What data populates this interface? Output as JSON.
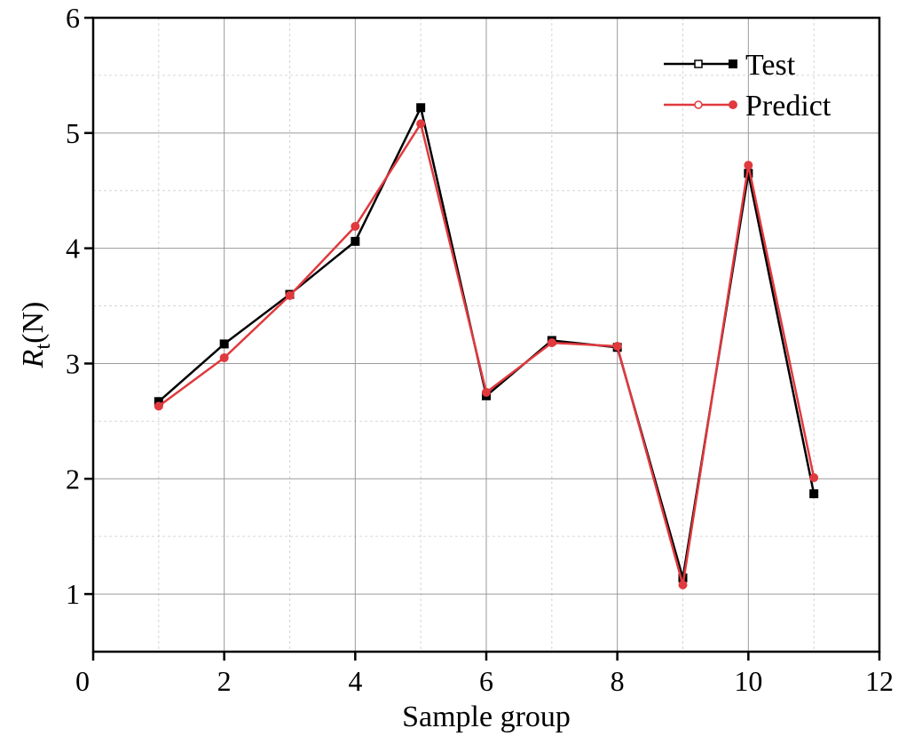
{
  "chart_data": {
    "type": "line",
    "title": "",
    "xlabel": "Sample group",
    "ylabel_main": "R",
    "ylabel_sub": "t",
    "ylabel_unit": "(N)",
    "xlim": [
      0,
      12
    ],
    "ylim": [
      0.5,
      6
    ],
    "xticks": [
      0,
      2,
      4,
      6,
      8,
      10,
      12
    ],
    "yticks": [
      1,
      2,
      3,
      4,
      5,
      6
    ],
    "grid": true,
    "legend_position": "top-right",
    "x": [
      1,
      2,
      3,
      4,
      5,
      6,
      7,
      8,
      9,
      10,
      11
    ],
    "series": [
      {
        "name": "Test",
        "color": "#000000",
        "marker": "square",
        "values": [
          2.67,
          3.17,
          3.6,
          4.06,
          5.22,
          2.72,
          3.2,
          3.14,
          1.14,
          4.65,
          1.87
        ]
      },
      {
        "name": "Predict",
        "color": "#e0393e",
        "marker": "circle",
        "values": [
          2.63,
          3.05,
          3.59,
          4.19,
          5.08,
          2.75,
          3.18,
          3.15,
          1.08,
          4.72,
          2.01
        ]
      }
    ]
  }
}
